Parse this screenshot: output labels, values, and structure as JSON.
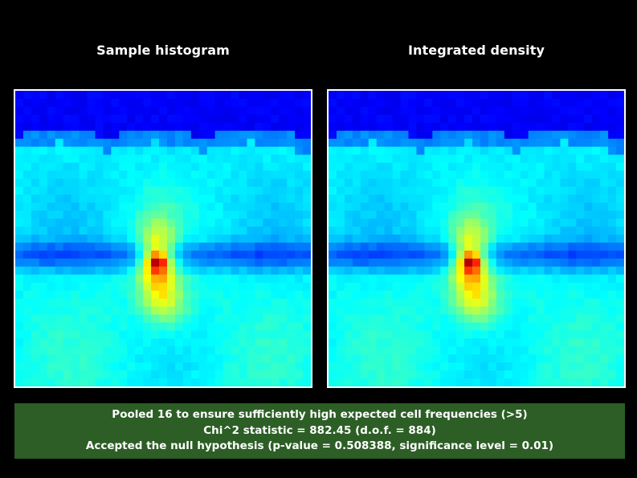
{
  "chart_data": [
    {
      "type": "heatmap",
      "title": "Sample histogram",
      "grid": "off",
      "colormap": "jet"
    },
    {
      "type": "heatmap",
      "title": "Integrated density",
      "grid": "off",
      "colormap": "jet"
    }
  ],
  "colors": {
    "background": "#000000",
    "status_box": "#2c5e25",
    "panel_border": "#ffffff",
    "text": "#ffffff"
  },
  "status": {
    "line1": "Pooled 16 to ensure sufficiently high expected cell frequencies (>5)",
    "line2": "Chi^2 statistic = 882.45 (d.o.f. = 884)",
    "line3": "Accepted the null hypothesis (p-value = 0.508388, significance level = 0.01)"
  }
}
